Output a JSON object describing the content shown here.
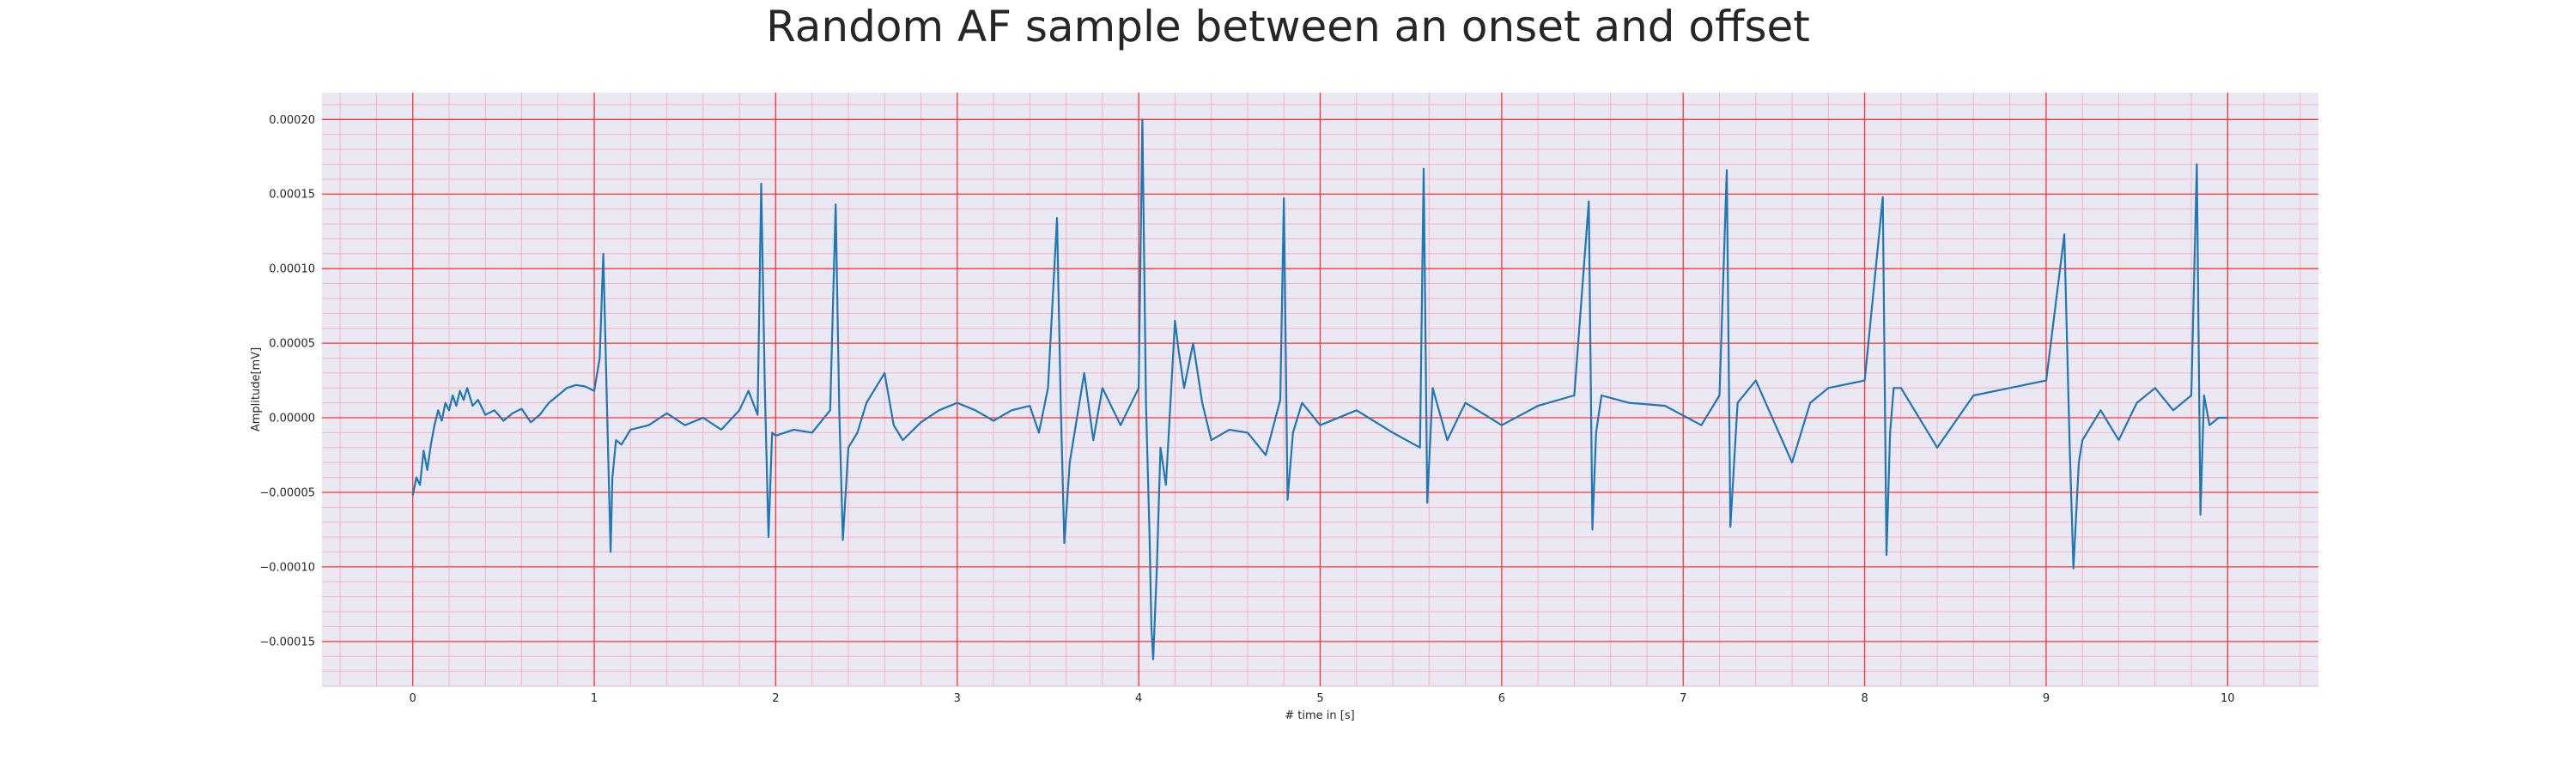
{
  "chart_data": {
    "type": "line",
    "title": "Random AF sample between an onset and offset",
    "xlabel": "# time in [s]",
    "ylabel": "Amplitude[mV]",
    "xlim": [
      -0.5,
      10.5
    ],
    "ylim": [
      -0.00018,
      0.000218
    ],
    "x_ticks": [
      0,
      1,
      2,
      3,
      4,
      5,
      6,
      7,
      8,
      9,
      10
    ],
    "x_tick_labels": [
      "0",
      "1",
      "2",
      "3",
      "4",
      "5",
      "6",
      "7",
      "8",
      "9",
      "10"
    ],
    "y_ticks": [
      0.0002,
      0.00015,
      0.0001,
      5e-05,
      0.0,
      -5e-05,
      -0.0001,
      -0.00015
    ],
    "y_tick_labels": [
      "0.00020",
      "0.00015",
      "0.00010",
      "0.00005",
      "0.00000",
      "−0.00005",
      "−0.00010",
      "−0.00015"
    ],
    "grid": "major and minor",
    "colors": {
      "line": "#1f77b4",
      "plot_background": "#eae8f2",
      "major_grid": "#ff3333",
      "minor_grid": "#f3b4c6"
    },
    "series": [
      {
        "x": [
          0.0,
          0.02,
          0.04,
          0.06,
          0.08,
          0.1,
          0.12,
          0.14,
          0.16,
          0.18,
          0.2,
          0.22,
          0.24,
          0.26,
          0.28,
          0.3,
          0.33,
          0.36,
          0.4,
          0.45,
          0.5,
          0.55,
          0.6,
          0.65,
          0.7,
          0.75,
          0.8,
          0.85,
          0.9,
          0.95,
          1.0,
          1.03,
          1.05,
          1.07,
          1.09,
          1.1,
          1.12,
          1.15,
          1.2,
          1.3,
          1.4,
          1.5,
          1.6,
          1.7,
          1.8,
          1.85,
          1.9,
          1.92,
          1.94,
          1.96,
          1.98,
          2.0,
          2.1,
          2.2,
          2.3,
          2.33,
          2.35,
          2.37,
          2.4,
          2.45,
          2.5,
          2.6,
          2.65,
          2.7,
          2.8,
          2.9,
          3.0,
          3.1,
          3.2,
          3.3,
          3.4,
          3.45,
          3.5,
          3.55,
          3.57,
          3.59,
          3.62,
          3.7,
          3.75,
          3.8,
          3.9,
          4.0,
          4.02,
          4.04,
          4.06,
          4.07,
          4.08,
          4.1,
          4.12,
          4.15,
          4.2,
          4.22,
          4.25,
          4.3,
          4.35,
          4.4,
          4.5,
          4.6,
          4.7,
          4.78,
          4.8,
          4.82,
          4.85,
          4.9,
          5.0,
          5.2,
          5.4,
          5.55,
          5.57,
          5.59,
          5.62,
          5.7,
          5.8,
          6.0,
          6.2,
          6.4,
          6.48,
          6.5,
          6.52,
          6.55,
          6.7,
          6.9,
          7.1,
          7.2,
          7.24,
          7.26,
          7.3,
          7.4,
          7.6,
          7.7,
          7.8,
          8.0,
          8.1,
          8.12,
          8.14,
          8.16,
          8.2,
          8.4,
          8.6,
          8.8,
          9.0,
          9.1,
          9.13,
          9.15,
          9.18,
          9.2,
          9.3,
          9.4,
          9.5,
          9.6,
          9.7,
          9.8,
          9.83,
          9.85,
          9.87,
          9.9,
          9.95,
          10.0
        ],
        "values": [
          -5.2e-05,
          -4e-05,
          -4.5e-05,
          -2.2e-05,
          -3.5e-05,
          -1.8e-05,
          -5e-06,
          5e-06,
          -2e-06,
          1e-05,
          5e-06,
          1.5e-05,
          8e-06,
          1.8e-05,
          1.2e-05,
          2e-05,
          8e-06,
          1.2e-05,
          2e-06,
          5e-06,
          -2e-06,
          3e-06,
          6e-06,
          -3e-06,
          2e-06,
          1e-05,
          1.5e-05,
          2e-05,
          2.2e-05,
          2.1e-05,
          1.8e-05,
          4e-05,
          0.00011,
          1e-05,
          -9e-05,
          -4e-05,
          -1.5e-05,
          -1.8e-05,
          -8e-06,
          -5e-06,
          3e-06,
          -5e-06,
          0.0,
          -8e-06,
          5e-06,
          1.8e-05,
          2e-06,
          0.000157,
          2e-05,
          -8e-05,
          -1e-05,
          -1.2e-05,
          -8e-06,
          -1e-05,
          5e-06,
          0.000143,
          5e-06,
          -8.2e-05,
          -2e-05,
          -1e-05,
          1e-05,
          3e-05,
          -5e-06,
          -1.5e-05,
          -3e-06,
          5e-06,
          1e-05,
          5e-06,
          -2e-06,
          5e-06,
          8e-06,
          -1e-05,
          2e-05,
          0.000134,
          1e-05,
          -8.4e-05,
          -3e-05,
          3e-05,
          -1.5e-05,
          2e-05,
          -5e-06,
          2e-05,
          0.0002,
          1e-05,
          -8e-05,
          -0.00014,
          -0.000162,
          -0.0001,
          -2e-05,
          -4.5e-05,
          6.5e-05,
          4.5e-05,
          2e-05,
          5e-05,
          1e-05,
          -1.5e-05,
          -8e-06,
          -1e-05,
          -2.5e-05,
          1.2e-05,
          0.000147,
          -5.5e-05,
          -1e-05,
          1e-05,
          -5e-06,
          5e-06,
          -1e-05,
          -2e-05,
          0.000167,
          -5.7e-05,
          2e-05,
          -1.5e-05,
          1e-05,
          -5e-06,
          8e-06,
          1.5e-05,
          0.000145,
          -7.5e-05,
          -1e-05,
          1.5e-05,
          1e-05,
          8e-06,
          -5e-06,
          1.5e-05,
          0.000166,
          -7.3e-05,
          1e-05,
          2.5e-05,
          -3e-05,
          1e-05,
          2e-05,
          2.5e-05,
          0.000148,
          -9.2e-05,
          -1e-05,
          2e-05,
          2e-05,
          -2e-05,
          1.5e-05,
          2e-05,
          2.5e-05,
          0.000123,
          -2e-05,
          -0.000101,
          -3e-05,
          -1.5e-05,
          5e-06,
          -1.5e-05,
          1e-05,
          2e-05,
          5e-06,
          1.5e-05,
          0.00017,
          -6.5e-05,
          1.5e-05,
          -5e-06,
          0.0,
          0.0
        ]
      }
    ]
  }
}
